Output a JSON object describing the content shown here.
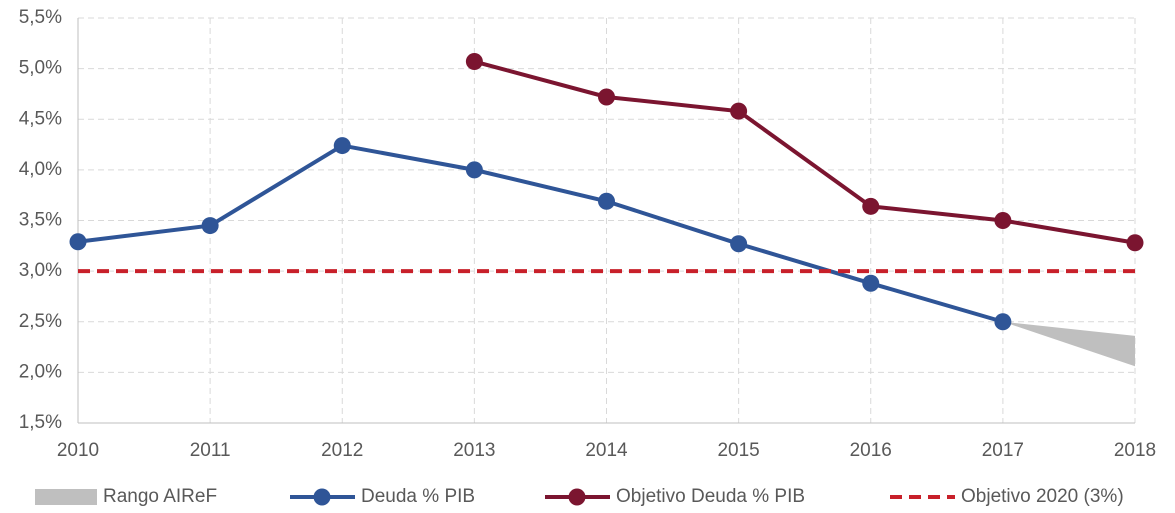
{
  "chart_data": {
    "type": "line",
    "categories": [
      "2010",
      "2011",
      "2012",
      "2013",
      "2014",
      "2015",
      "2016",
      "2017",
      "2018"
    ],
    "ylim": [
      1.5,
      5.5
    ],
    "yticks": [
      {
        "value": 1.5,
        "label": "1,5%"
      },
      {
        "value": 2.0,
        "label": "2,0%"
      },
      {
        "value": 2.5,
        "label": "2,5%"
      },
      {
        "value": 3.0,
        "label": "3,0%"
      },
      {
        "value": 3.5,
        "label": "3,5%"
      },
      {
        "value": 4.0,
        "label": "4,0%"
      },
      {
        "value": 4.5,
        "label": "4,5%"
      },
      {
        "value": 5.0,
        "label": "5,0%"
      },
      {
        "value": 5.5,
        "label": "5,5%"
      }
    ],
    "grid": true,
    "legend": "bottom",
    "series": [
      {
        "name": "Rango AIReF",
        "color": "#bfbfbf",
        "style": "area",
        "lower": [
          null,
          null,
          null,
          null,
          null,
          null,
          null,
          2.5,
          2.06
        ],
        "upper": [
          null,
          null,
          null,
          null,
          null,
          null,
          null,
          2.5,
          2.36
        ]
      },
      {
        "name": "Deuda % PIB",
        "color": "#2f5597",
        "style": "line",
        "values": [
          3.29,
          3.45,
          4.24,
          4.0,
          3.69,
          3.27,
          2.88,
          2.5,
          null
        ]
      },
      {
        "name": "Objetivo Deuda % PIB",
        "color": "#7b1530",
        "style": "line",
        "values": [
          null,
          null,
          null,
          5.07,
          4.72,
          4.58,
          3.64,
          3.5,
          3.28
        ]
      },
      {
        "name": "Objetivo 2020 (3%)",
        "color": "#c8202a",
        "style": "dashed",
        "values": [
          3.0,
          3.0,
          3.0,
          3.0,
          3.0,
          3.0,
          3.0,
          3.0,
          3.0
        ]
      }
    ]
  }
}
